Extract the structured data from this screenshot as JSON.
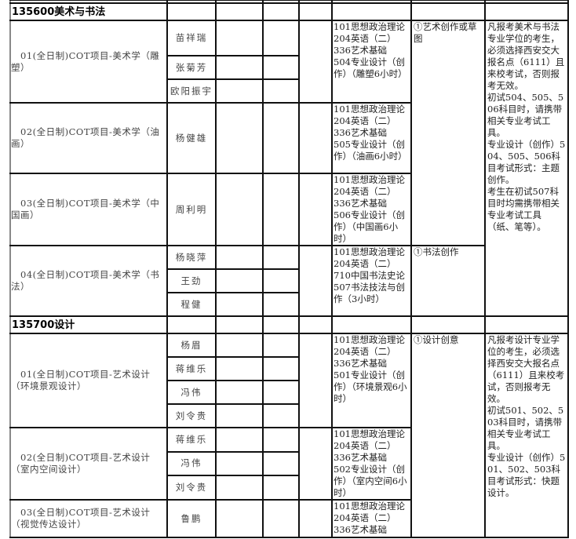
{
  "sections": [
    {
      "title": "135600美术与书法",
      "programs": [
        {
          "name": "01(全日制)COT项目-美术学（雕塑）",
          "advisors": [
            "苗祥瑞",
            "张菊芳",
            "欧阳振宇"
          ],
          "exam": [
            "101思想政治理论",
            "204英语（二）",
            "336艺术基础",
            "504专业设计（创作）（雕塑6小时）"
          ]
        },
        {
          "name": "02(全日制)COT项目-美术学（油画）",
          "advisors": [
            "杨健雄"
          ],
          "exam": [
            "101思想政治理论",
            "204英语（二）",
            "336艺术基础",
            "505专业设计（创作）（油画6小时）"
          ]
        },
        {
          "name": "03(全日制)COT项目-美术学（中国画）",
          "advisors": [
            "周利明"
          ],
          "exam": [
            "101思想政治理论",
            "204英语（二）",
            "336艺术基础",
            "506专业设计（创作）（中国画6小时）"
          ]
        },
        {
          "name": "04(全日制)COT项目-美术学（书法）",
          "advisors": [
            "杨晓萍",
            "王劲",
            "程健"
          ],
          "exam": [
            "101思想政治理论",
            "204英语（二）",
            "710中国书法史论",
            "507书法技法与创作（3小时）"
          ]
        }
      ],
      "retest": [
        {
          "text": "①艺术创作或草图",
          "span_programs": 3
        },
        {
          "text": "①书法创作",
          "span_programs": 1
        }
      ],
      "note": [
        "凡报考美术与书法专业学位的考生，必须选择西安交大报名点（6111）且来校考试，否则报考无效。",
        "初试504、505、506科目时，请携带相关专业考试工具。",
        "专业设计（创作）504、505、506科目考试形式：主题创作。",
        "考生在初试507科目时均需携带相关专业考试工具（纸、笔等）。"
      ]
    },
    {
      "title": "135700设计",
      "programs": [
        {
          "name": "01(全日制)COT项目-艺术设计（环境景观设计）",
          "advisors": [
            "杨眉",
            "蒋维乐",
            "冯伟",
            "刘令贵"
          ],
          "exam": [
            "101思想政治理论",
            "204英语（二）",
            "336艺术基础",
            "501专业设计（创作）（环境景观6小时）"
          ]
        },
        {
          "name": "02(全日制)COT项目-艺术设计（室内空间设计）",
          "advisors": [
            "蒋维乐",
            "冯伟",
            "刘令贵"
          ],
          "exam": [
            "101思想政治理论",
            "204英语（二）",
            "336艺术基础",
            "502专业设计（创作）（室内空间6小时）"
          ]
        },
        {
          "name": "03(全日制)COT项目-艺术设计（视觉传达设计）",
          "advisors": [
            "鲁鹏"
          ],
          "exam": [
            "101思想政治理论",
            "204英语（二）",
            "336艺术基础"
          ]
        }
      ],
      "retest": [
        {
          "text": "①设计创意",
          "span_programs": 3
        }
      ],
      "note": [
        "凡报考设计专业学位的考生，必须选择西安交大报名点（6111）且来校考试，否则报考无效。",
        "初试501、502、503科目时，请携带相关专业考试工具。",
        "专业设计（创作）501、502、503科目考试形式：快题设计。"
      ]
    }
  ]
}
